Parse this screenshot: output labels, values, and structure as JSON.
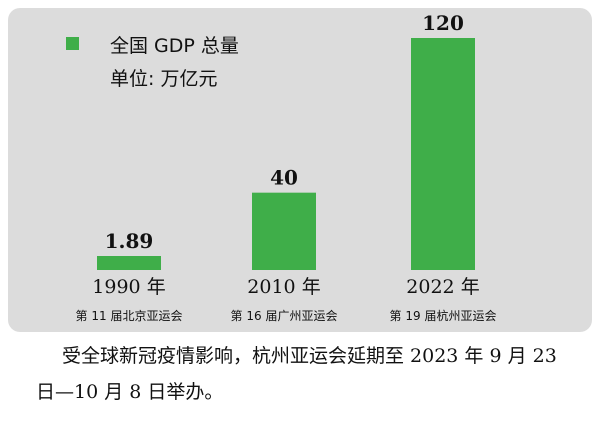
{
  "chart_data": {
    "type": "bar",
    "title": "",
    "legend": {
      "label": "全国 GDP 总量",
      "color": "#3fae49",
      "position": "top-left"
    },
    "unit": "单位: 万亿元",
    "categories": [
      "1990 年",
      "2010 年",
      "2022 年"
    ],
    "subcategories": [
      "第 11 届北京亚运会",
      "第 16 届广州亚运会",
      "第 19 届杭州亚运会"
    ],
    "series": [
      {
        "name": "全国 GDP 总量",
        "values": [
          1.89,
          40,
          120
        ],
        "labels": [
          "1.89",
          "40",
          "120"
        ]
      }
    ],
    "ylim": [
      0,
      120
    ],
    "grid": false,
    "bar_color": "#3fae49"
  },
  "caption": "受全球新冠疫情影响，杭州亚运会延期至 2023 年 9 月 23 日—10 月 8 日举办。"
}
